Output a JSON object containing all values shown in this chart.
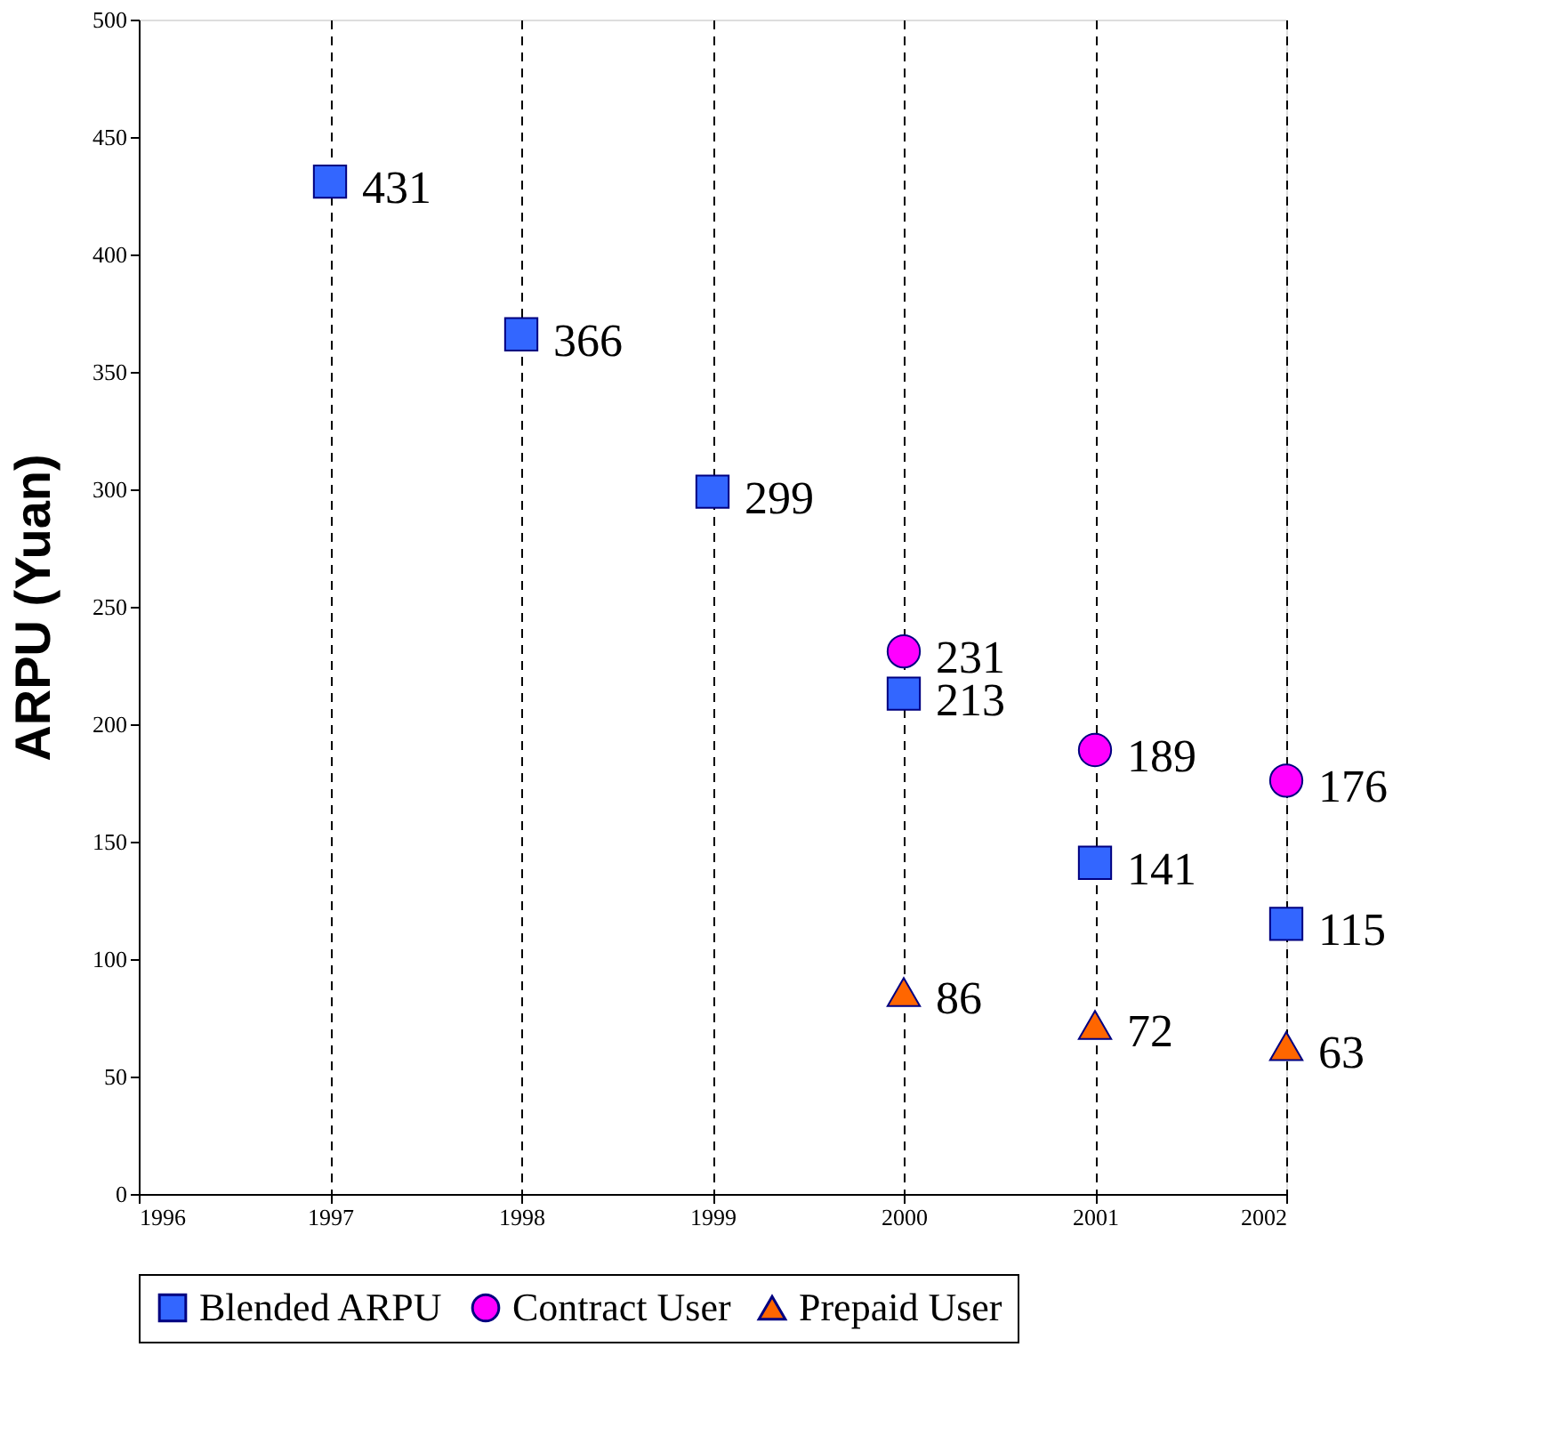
{
  "chart_data": {
    "type": "scatter",
    "ylabel": "ARPU (Yuan)",
    "xlim": [
      1996,
      2002
    ],
    "xticks": [
      1996,
      1997,
      1998,
      1999,
      2000,
      2001,
      2002
    ],
    "ylim": [
      0,
      500
    ],
    "yticks": [
      0,
      50,
      100,
      150,
      200,
      250,
      300,
      350,
      400,
      450,
      500
    ],
    "grid": "x",
    "line_style": "dashed",
    "legend": "bottom",
    "data_labels": true,
    "series": [
      {
        "name": "Blended ARPU",
        "color": "#3366ff",
        "marker": "square",
        "x": [
          1997,
          1998,
          1999,
          2000,
          2001,
          2002
        ],
        "values": [
          431,
          366,
          299,
          213,
          141,
          115
        ]
      },
      {
        "name": "Contract User",
        "color": "#ff00ff",
        "marker": "circle",
        "x": [
          2000,
          2001,
          2002
        ],
        "values": [
          231,
          189,
          176
        ]
      },
      {
        "name": "Prepaid User",
        "color": "#ff6600",
        "marker": "triangle",
        "x": [
          2000,
          2001,
          2002
        ],
        "values": [
          86,
          72,
          63
        ]
      }
    ]
  }
}
